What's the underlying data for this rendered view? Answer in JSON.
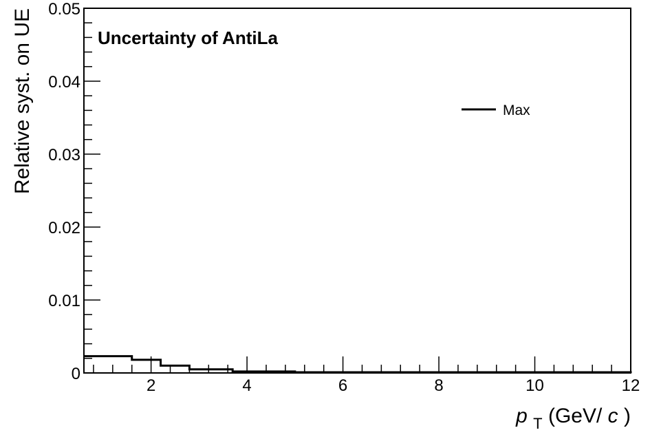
{
  "chart_data": {
    "type": "line",
    "title": "Uncertainty of AntiLa",
    "xlabel": {
      "var": "p",
      "sub": "T",
      "unit_pre": "(GeV/",
      "unit_var": "c",
      "unit_post": ")"
    },
    "ylabel": "Relative syst. on UE",
    "xlim": [
      0.6,
      12
    ],
    "ylim": [
      0,
      0.05
    ],
    "x_ticks": [
      2,
      4,
      6,
      8,
      10,
      12
    ],
    "y_ticks": [
      0,
      0.01,
      0.02,
      0.03,
      0.04,
      0.05
    ],
    "y_tick_labels": [
      "0",
      "0.01",
      "0.02",
      "0.03",
      "0.04",
      "0.05"
    ],
    "x_minor_step": 0.4,
    "y_minor_step": 0.002,
    "grid": false,
    "legend_position": "top-right",
    "series": [
      {
        "name": "Max",
        "color": "#000000",
        "step": true,
        "bin_edges": [
          0.6,
          1.6,
          2.2,
          2.8,
          3.7,
          5.0,
          12.0
        ],
        "values": [
          0.0023,
          0.0018,
          0.001,
          0.0005,
          0.0002,
          0.0001
        ]
      }
    ]
  }
}
